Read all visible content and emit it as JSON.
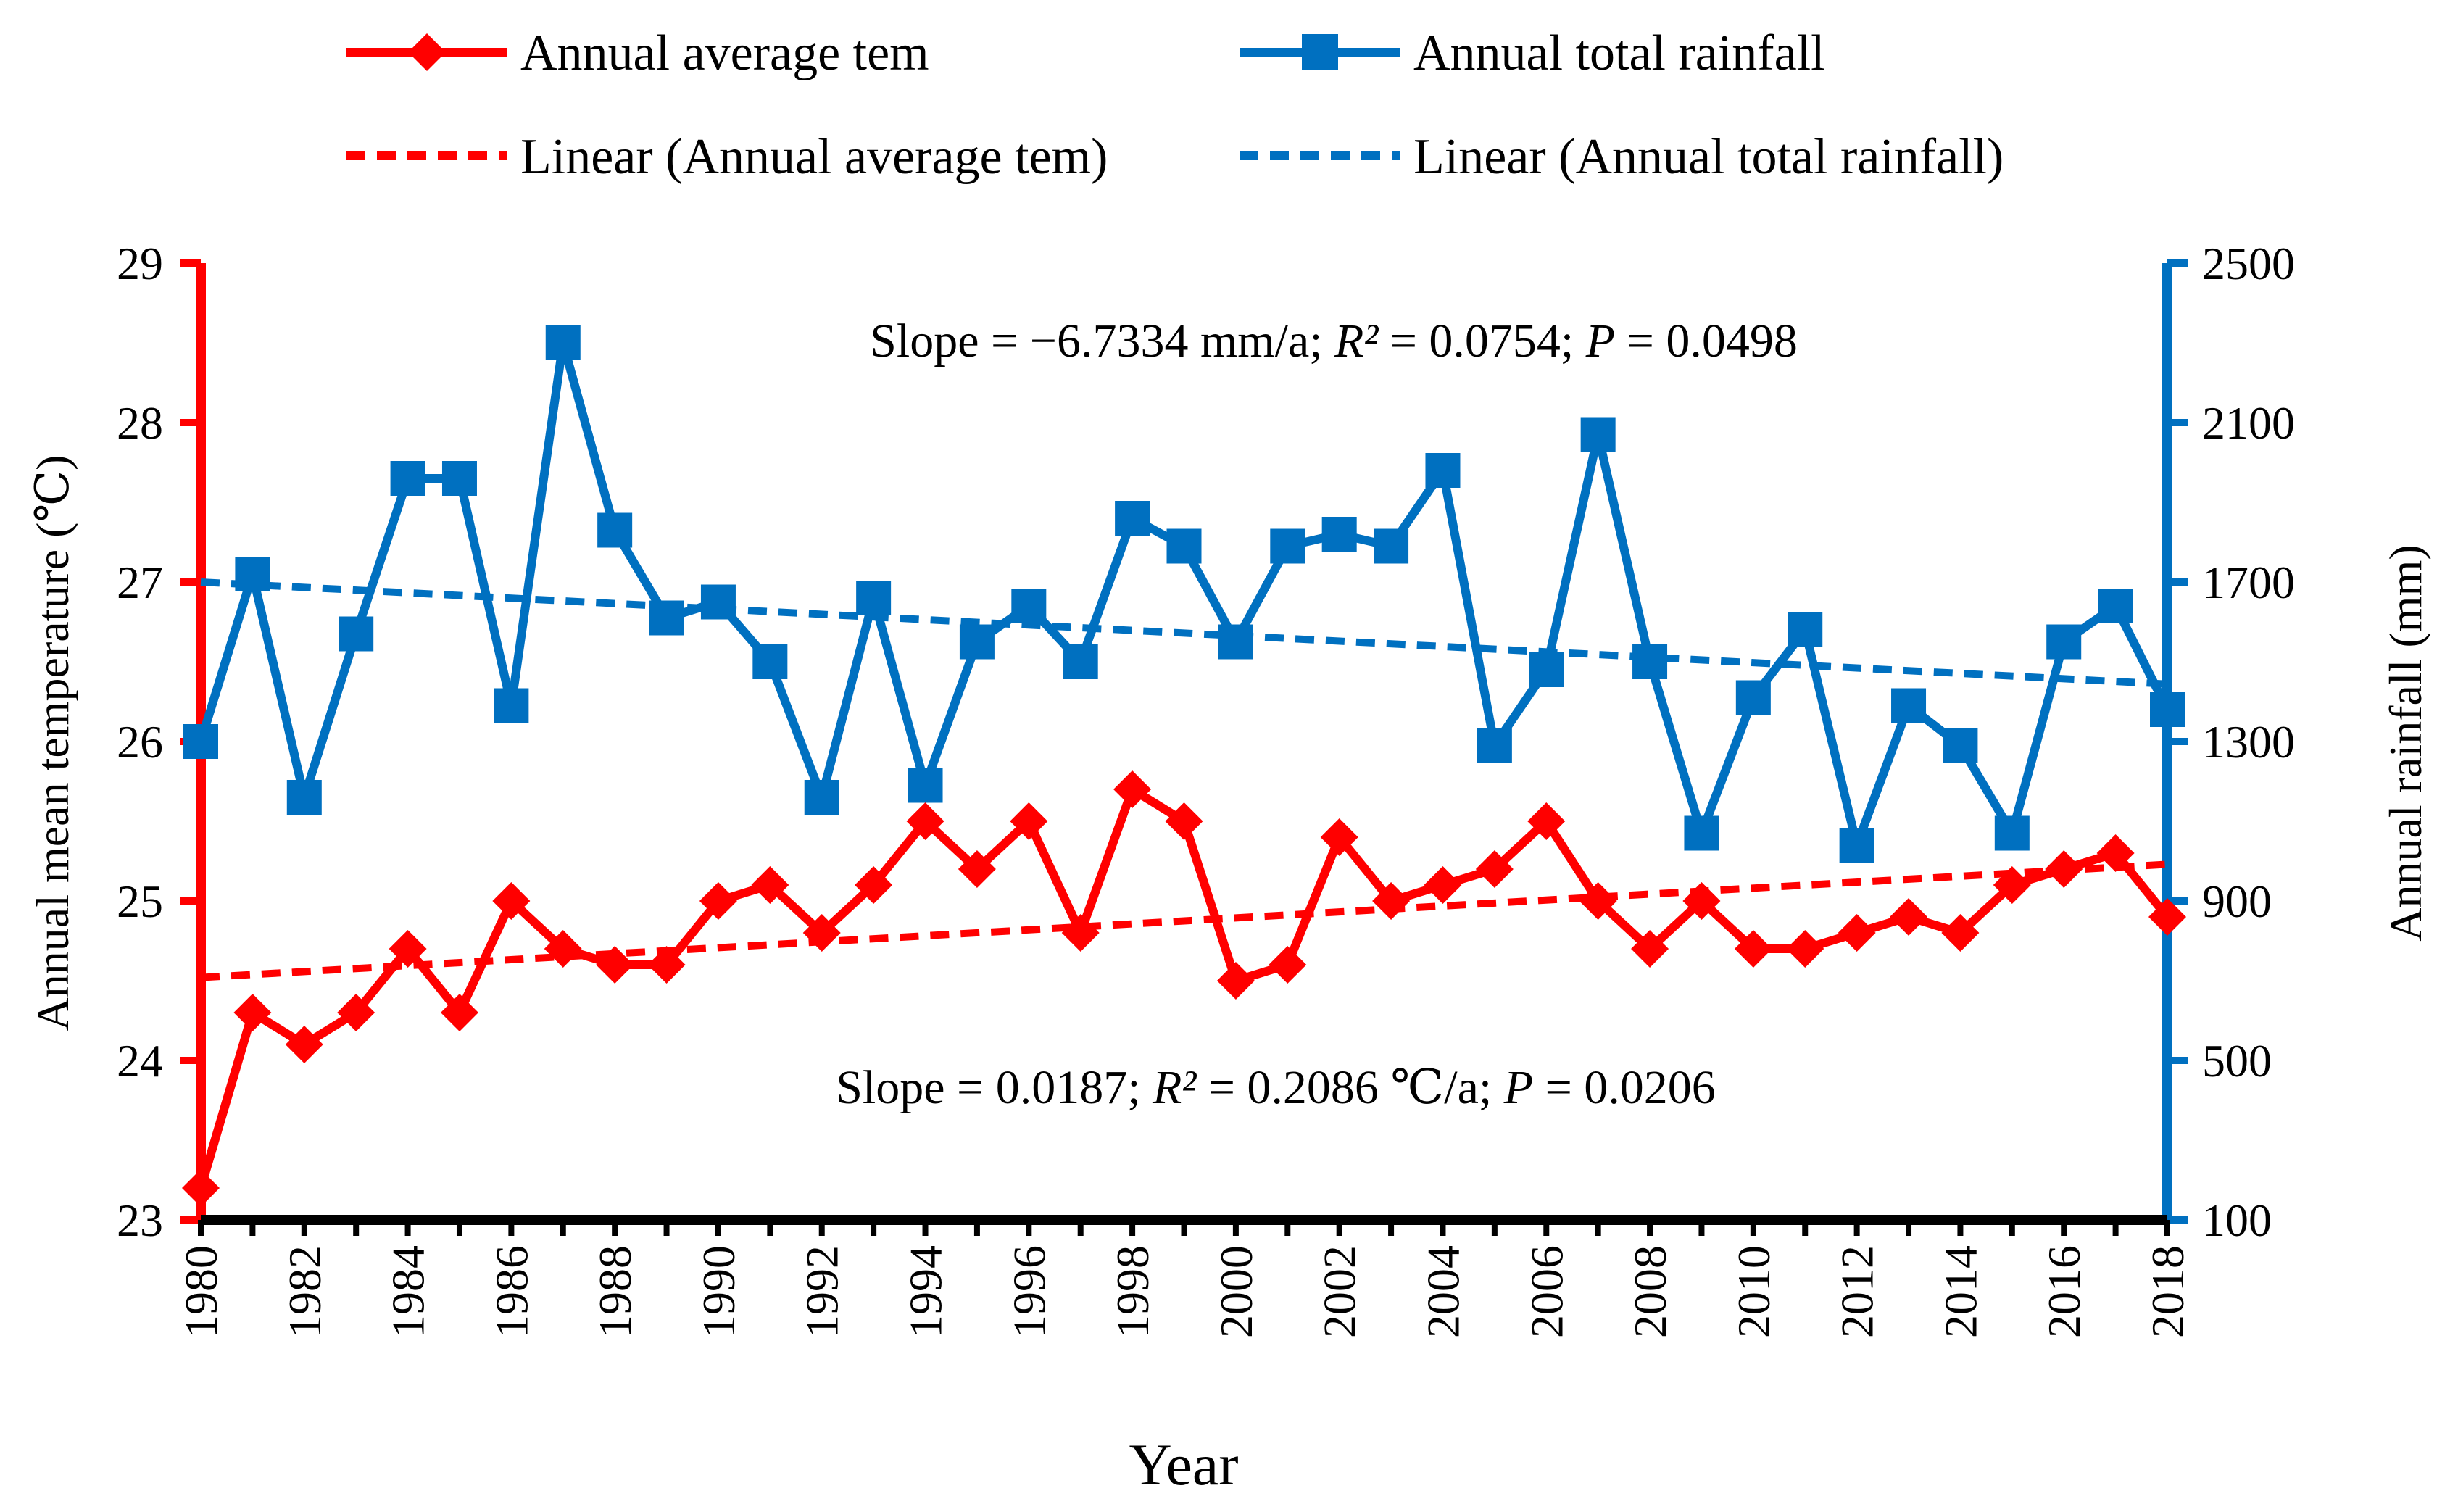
{
  "chart_data": {
    "type": "line",
    "x": [
      1980,
      1981,
      1982,
      1983,
      1984,
      1985,
      1986,
      1987,
      1988,
      1989,
      1990,
      1991,
      1992,
      1993,
      1994,
      1995,
      1996,
      1997,
      1998,
      1999,
      2000,
      2001,
      2002,
      2003,
      2004,
      2005,
      2006,
      2007,
      2008,
      2009,
      2010,
      2011,
      2012,
      2013,
      2014,
      2015,
      2016,
      2017,
      2018
    ],
    "x_tick_labels": [
      "1980",
      "1982",
      "1984",
      "1986",
      "1988",
      "1990",
      "1992",
      "1994",
      "1996",
      "1998",
      "2000",
      "2002",
      "2004",
      "2006",
      "2008",
      "2010",
      "2012",
      "2014",
      "2016",
      "2018"
    ],
    "xlabel": "Year",
    "y_left": {
      "label": "Annual mean temperature (℃)",
      "range": [
        23,
        29
      ],
      "ticks": [
        "23",
        "24",
        "25",
        "26",
        "27",
        "28",
        "29"
      ],
      "color": "#FF0000"
    },
    "y_right": {
      "label": "Annual rainfall (mm)",
      "range": [
        100,
        2500
      ],
      "ticks": [
        "100",
        "500",
        "900",
        "1300",
        "1700",
        "2100",
        "2500"
      ],
      "color": "#0070C0"
    },
    "series": [
      {
        "name": "Annual average tem",
        "axis": "left",
        "color": "#FF0000",
        "marker": "diamond",
        "values": [
          23.2,
          24.3,
          24.1,
          24.3,
          24.7,
          24.3,
          25.0,
          24.7,
          24.6,
          24.6,
          25.0,
          25.1,
          24.8,
          25.1,
          25.5,
          25.2,
          25.5,
          24.8,
          25.7,
          25.5,
          24.5,
          24.6,
          25.4,
          25.0,
          25.1,
          25.2,
          25.5,
          25.0,
          24.7,
          25.0,
          24.7,
          24.7,
          24.8,
          24.9,
          24.8,
          25.1,
          25.2,
          25.3,
          24.9
        ]
      },
      {
        "name": "Annual total rainfall",
        "axis": "right",
        "color": "#0070C0",
        "marker": "square",
        "values": [
          1300,
          1720,
          1160,
          1570,
          1960,
          1960,
          1390,
          2300,
          1830,
          1610,
          1650,
          1500,
          1160,
          1660,
          1190,
          1550,
          1640,
          1500,
          1860,
          1790,
          1550,
          1790,
          1820,
          1790,
          1980,
          1290,
          1480,
          2070,
          1500,
          1070,
          1410,
          1580,
          1040,
          1390,
          1290,
          1070,
          1550,
          1640,
          1380
        ]
      },
      {
        "name": "Linear (Annual average tem)",
        "axis": "left",
        "color": "#FF0000",
        "style": "dashed",
        "endpoints": [
          24.52,
          25.23
        ]
      },
      {
        "name": "Linear (Annual total rainfall)",
        "axis": "right",
        "color": "#0070C0",
        "style": "dashed",
        "endpoints": [
          1700,
          1444
        ]
      }
    ],
    "annotations": {
      "rain": "Slope = −6.7334 mm/a; R² = 0.0754; P = 0.0498",
      "temp": "Slope = 0.0187; R² = 0.2086 ℃/a; P = 0.0206"
    },
    "legend": {
      "position": "top",
      "entries": [
        "Annual average tem",
        "Annual total rainfall",
        "Linear (Annual average tem)",
        "Linear (Annual total rainfall)"
      ]
    }
  }
}
